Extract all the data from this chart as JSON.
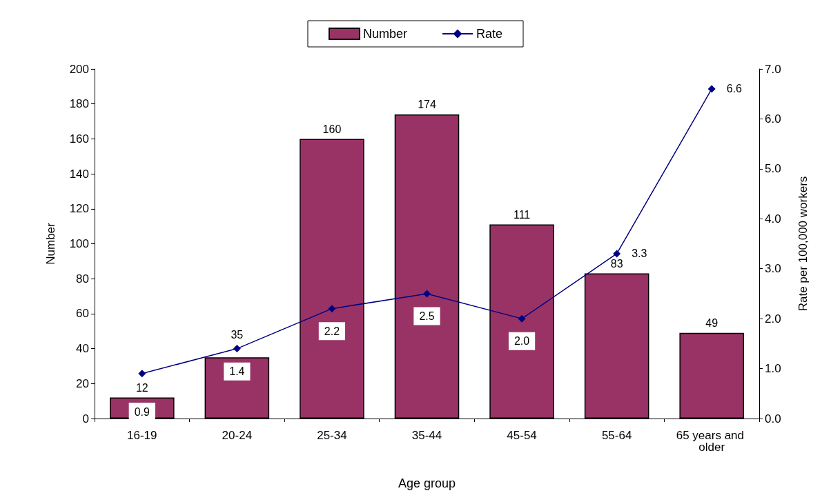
{
  "chart_data": {
    "type": "bar",
    "xlabel": "Age group",
    "ylabel": "Number",
    "y2label": "Rate per 100,000 workers",
    "categories": [
      "16-19",
      "20-24",
      "25-34",
      "35-44",
      "45-54",
      "55-64",
      "65 years and older"
    ],
    "series": [
      {
        "name": "Number",
        "color": "#993366",
        "values": [
          12,
          35,
          160,
          174,
          111,
          83,
          49
        ]
      },
      {
        "name": "Rate",
        "type": "line",
        "axis": "y2",
        "color": "#000080",
        "marker": "diamond",
        "values": [
          0.9,
          1.4,
          2.2,
          2.5,
          2.0,
          3.3,
          6.6
        ],
        "value_labels": [
          "0.9",
          "1.4",
          "2.2",
          "2.5",
          "2.0",
          "3.3",
          "6.6"
        ]
      }
    ],
    "ylim": [
      0,
      200
    ],
    "yticks": [
      0,
      20,
      40,
      60,
      80,
      100,
      120,
      140,
      160,
      180,
      200
    ],
    "y2lim": [
      0,
      7
    ],
    "y2ticks": [
      {
        "value": 0,
        "label": "0.0"
      },
      {
        "value": 1,
        "label": "1.0"
      },
      {
        "value": 2,
        "label": "2.0"
      },
      {
        "value": 3,
        "label": "3.0"
      },
      {
        "value": 4,
        "label": "4.0"
      },
      {
        "value": 5,
        "label": "5.0"
      },
      {
        "value": 6,
        "label": "6.0"
      },
      {
        "value": 7,
        "label": "7.0"
      }
    ],
    "data_labels": true,
    "grid": false,
    "legend": "top"
  }
}
